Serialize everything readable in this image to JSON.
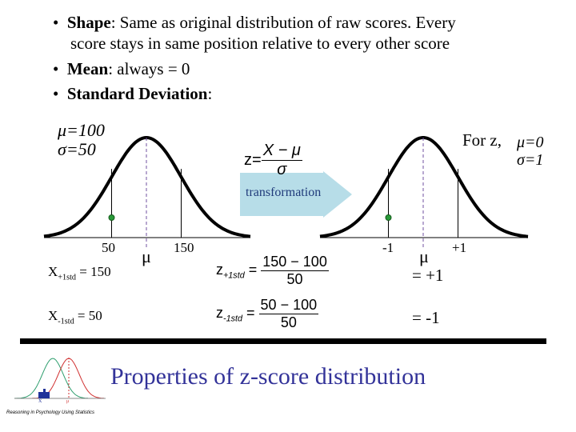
{
  "bullets": [
    {
      "term": "Shape",
      "text": ": Same as original distribution of raw scores.  Every",
      "cont": "score stays in same position relative to every other score"
    },
    {
      "term": "Mean",
      "text": ": always = 0"
    },
    {
      "term": "Standard Deviation",
      "text": ":"
    }
  ],
  "left_plot": {
    "mu": "μ=100",
    "sigma": "σ=50",
    "tick_low": "50",
    "tick_mu": "μ",
    "tick_high": "150"
  },
  "right_plot": {
    "for_z": "For z,",
    "mu": "μ=0",
    "sigma": "σ=1",
    "tick_low": "-1",
    "tick_mu": "μ",
    "tick_high": "+1"
  },
  "formula": {
    "lhs": "z=",
    "num": "X − μ",
    "den": "σ"
  },
  "arrow": {
    "label": "transformation",
    "color": "#b7dde8",
    "text_color": "#1f3a7a"
  },
  "rows": [
    {
      "x_label": "X",
      "x_sub": "+1std",
      "x_val": " = 150",
      "z": "z",
      "z_sub": "+1std",
      "num": "150 − 100",
      "den": "50",
      "result": "= +1"
    },
    {
      "x_label": "X",
      "x_sub": "-1std",
      "x_val": " = 50",
      "z": "z",
      "z_sub": "-1std",
      "num": "50 − 100",
      "den": "50",
      "result": "= -1"
    }
  ],
  "title": "Properties of z-score distribution",
  "title_color": "#333399",
  "logo": {
    "caption": "Reasoning in Psychology Using Statistics",
    "x_label": "X̄",
    "mu_label": "μ"
  }
}
